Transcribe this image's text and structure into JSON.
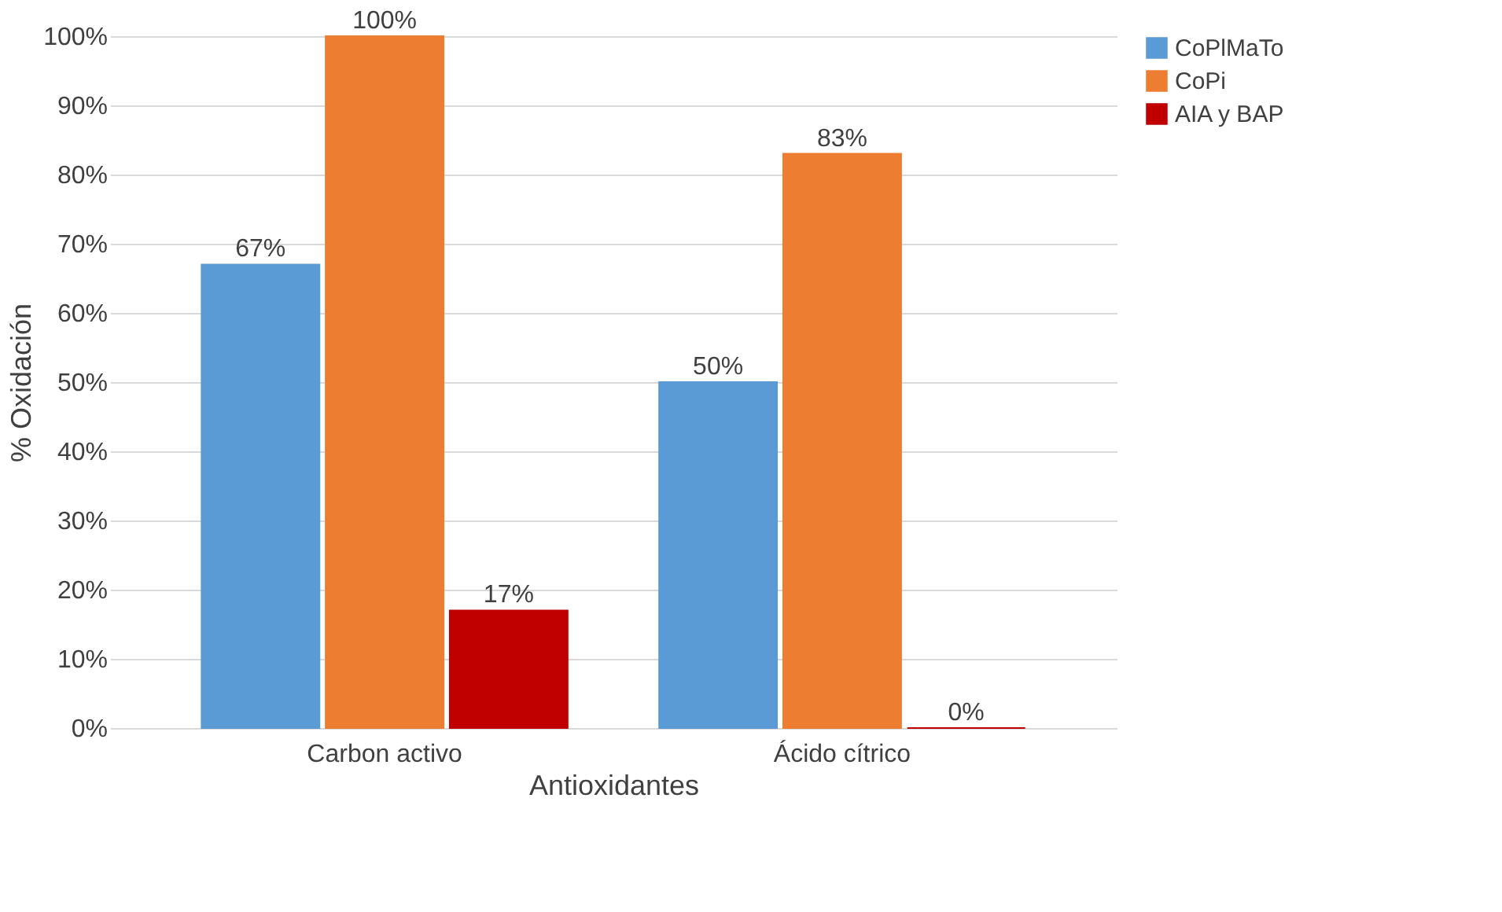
{
  "chart_data": {
    "type": "bar",
    "xlabel": "Antioxidantes",
    "ylabel": "% Oxidación",
    "categories": [
      "Carbon activo",
      "Ácido cítrico"
    ],
    "series": [
      {
        "name": "CoPlMaTo",
        "color": "#5b9bd5",
        "values": [
          67,
          50
        ],
        "value_labels": [
          "67%",
          "50%"
        ]
      },
      {
        "name": "CoPi",
        "color": "#ed7d31",
        "values": [
          100,
          83
        ],
        "value_labels": [
          "100%",
          "83%"
        ]
      },
      {
        "name": "AIA y BAP",
        "color": "#c00000",
        "values": [
          17,
          0
        ],
        "value_labels": [
          "17%",
          "0%"
        ]
      }
    ],
    "ylim": [
      0,
      100
    ],
    "yticks": [
      {
        "value": 0,
        "label": "0%"
      },
      {
        "value": 10,
        "label": "10%"
      },
      {
        "value": 20,
        "label": "20%"
      },
      {
        "value": 30,
        "label": "30%"
      },
      {
        "value": 40,
        "label": "40%"
      },
      {
        "value": 50,
        "label": "50%"
      },
      {
        "value": 60,
        "label": "60%"
      },
      {
        "value": 70,
        "label": "70%"
      },
      {
        "value": 80,
        "label": "80%"
      },
      {
        "value": 90,
        "label": "90%"
      },
      {
        "value": 100,
        "label": "100%"
      }
    ],
    "grid": "y",
    "legend": "right"
  }
}
